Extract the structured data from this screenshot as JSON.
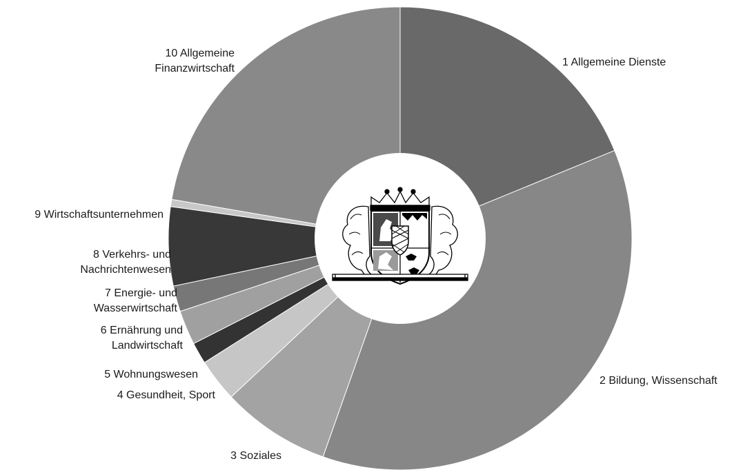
{
  "chart_data": {
    "type": "pie",
    "variant": "donut",
    "title": "",
    "categories": [
      "1 Allgemeine Dienste",
      "2 Bildung, Wissenschaft",
      "3 Soziales",
      "4 Gesundheit, Sport",
      "5 Wohnungswesen",
      "6 Ernährung und Landwirtschaft",
      "7 Energie- und Wasserwirtschaft",
      "8 Verkehrs- und Nachrichtenwesen",
      "9 Wirtschaftsunternehmen",
      "10 Allgemeine Finanzwirtschaft"
    ],
    "values": [
      18.8,
      36.6,
      7.6,
      3.0,
      1.5,
      2.4,
      1.8,
      5.5,
      0.5,
      22.3
    ],
    "unit": "%",
    "colors": [
      "#696969",
      "#878787",
      "#a3a3a3",
      "#c6c6c6",
      "#333333",
      "#a0a0a0",
      "#777777",
      "#383838",
      "#c8c8c8",
      "#898989"
    ],
    "label_lines": [
      [
        "1 Allgemeine Dienste"
      ],
      [
        "2 Bildung, Wissenschaft"
      ],
      [
        "3 Soziales"
      ],
      [
        "4 Gesundheit, Sport"
      ],
      [
        "5 Wohnungswesen"
      ],
      [
        "6 Ernährung und",
        "Landwirtschaft"
      ],
      [
        "7 Energie- und",
        "Wasserwirtschaft"
      ],
      [
        "8 Verkehrs- und",
        "Nachrichtenwesen"
      ],
      [
        "9 Wirtschaftsunternehmen"
      ],
      [
        "10 Allgemeine",
        "Finanzwirtschaft"
      ]
    ],
    "start_angle": "12 o'clock",
    "direction": "clockwise",
    "legend": "none",
    "center_image": "coat-of-arms-of-bavaria"
  }
}
